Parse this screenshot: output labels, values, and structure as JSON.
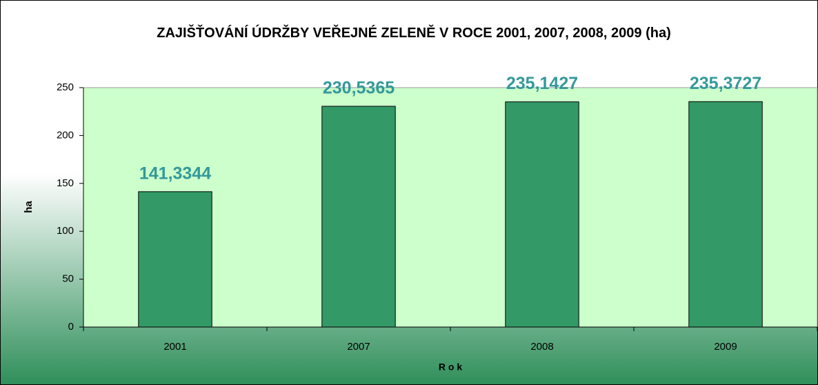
{
  "chart_data": {
    "type": "bar",
    "title": "ZAJIŠŤOVÁNÍ ÚDRŽBY VEŘEJNÉ ZELENĚ V ROCE 2001, 2007, 2008, 2009 (ha)",
    "x_label": "R o k",
    "y_label": "ha",
    "categories": [
      "2001",
      "2007",
      "2008",
      "2009"
    ],
    "values": [
      141.3344,
      230.5365,
      235.1427,
      235.3727
    ],
    "value_labels": [
      "141,3344",
      "230,5365",
      "235,1427",
      "235,3727"
    ],
    "color": "#339966",
    "value_label_color": "#339999",
    "plot_background": "#ccffcc",
    "ylim": [
      0,
      250
    ],
    "yticks": [
      0,
      50,
      100,
      150,
      200,
      250
    ],
    "grid": false
  }
}
